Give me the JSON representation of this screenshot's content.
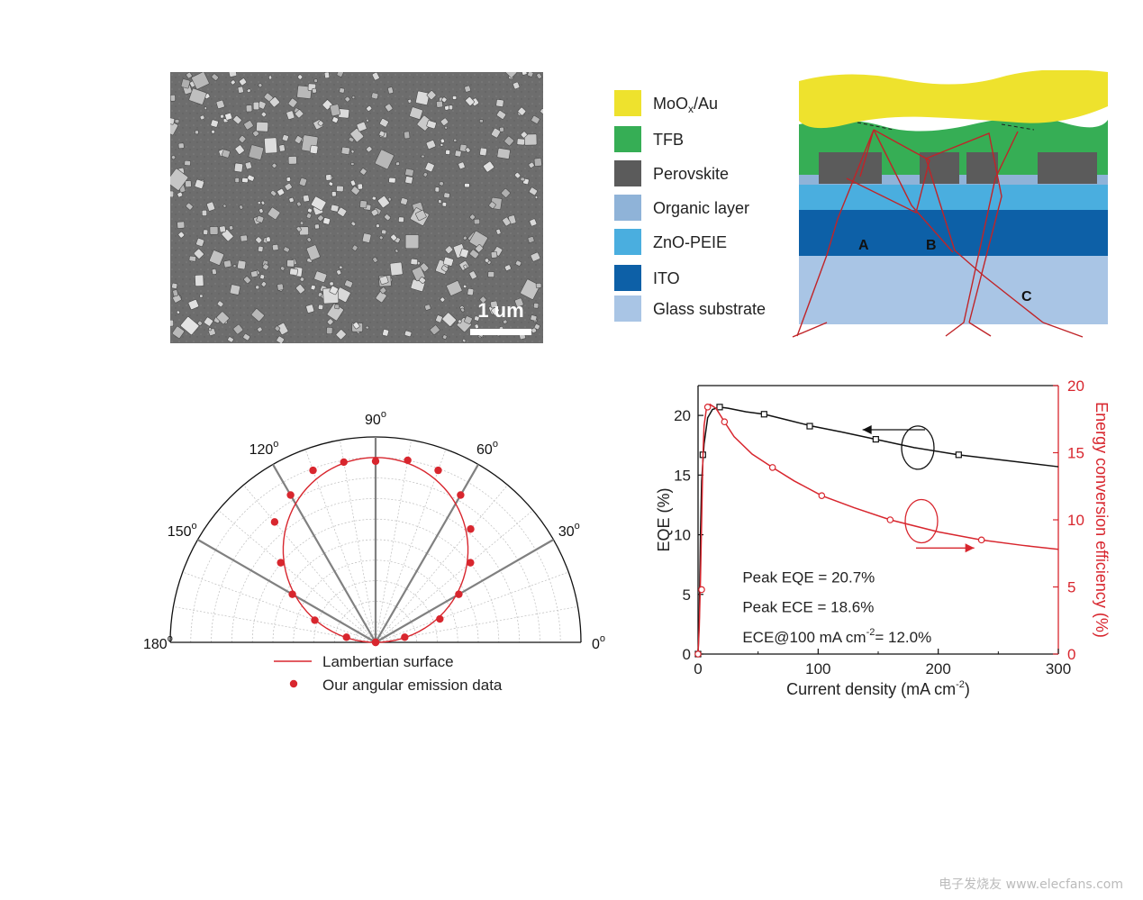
{
  "sem": {
    "scale_label": "1 um"
  },
  "stack": {
    "legend": [
      {
        "label": "MoO",
        "sub": "x",
        "tail": "/Au",
        "color": "#eee22d"
      },
      {
        "label": "TFB",
        "color": "#36ae55"
      },
      {
        "label": "Perovskite",
        "color": "#5b5b5b"
      },
      {
        "label": "Organic layer",
        "color": "#8fb3d8"
      },
      {
        "label": "ZnO-PEIE",
        "color": "#4aaedf"
      },
      {
        "label": "ITO",
        "color": "#0d60a7"
      },
      {
        "label": "Glass substrate",
        "color": "#a9c5e5"
      }
    ],
    "path_labels": [
      "A",
      "B",
      "C"
    ],
    "ray_color": "#c02428"
  },
  "chart_data": [
    {
      "type": "scatter",
      "subtype": "polar",
      "angle_ticks": [
        "0",
        "30",
        "60",
        "90",
        "120",
        "150",
        "180"
      ],
      "degree_symbol": "o",
      "series": [
        {
          "name": "Lambertian surface",
          "kind": "line",
          "color": "#d8262e",
          "model": "cosine"
        },
        {
          "name": "Our angular emission data",
          "kind": "points",
          "color": "#d8262e",
          "angles_deg": [
            0,
            10,
            20,
            30,
            40,
            50,
            60,
            70,
            80,
            90,
            100,
            110,
            120,
            130,
            140,
            150,
            160,
            170,
            180
          ],
          "r": [
            0.0,
            0.16,
            0.37,
            0.52,
            0.67,
            0.8,
            0.92,
            0.99,
            1.0,
            0.98,
            0.99,
            0.99,
            0.92,
            0.85,
            0.67,
            0.52,
            0.35,
            0.16,
            0.0
          ]
        }
      ],
      "rlim": [
        0,
        1
      ],
      "legend_position": "bottom"
    },
    {
      "type": "line",
      "xlabel": "Current density (mA cm",
      "xlabel_sup": "-2",
      "xlabel_tail": ")",
      "ylabel": "EQE (%)",
      "y2label": "Energy conversion efficiency (%)",
      "xlim": [
        0,
        300
      ],
      "ylim": [
        0,
        22.5
      ],
      "y2lim": [
        0,
        20
      ],
      "xticks": [
        0,
        100,
        200,
        300
      ],
      "yticks": [
        0,
        5,
        10,
        15,
        20
      ],
      "y2ticks": [
        0,
        5,
        10,
        15,
        20
      ],
      "series": [
        {
          "name": "EQE",
          "axis": "left",
          "color": "#111111",
          "marker": "square",
          "x": [
            0,
            1,
            2,
            3,
            5,
            8,
            12,
            18,
            25,
            40,
            55,
            75,
            95,
            120,
            148,
            180,
            217,
            250,
            300
          ],
          "y": [
            0,
            3.0,
            10.0,
            14.5,
            17.6,
            19.8,
            20.5,
            20.7,
            20.6,
            20.3,
            20.1,
            19.6,
            19.1,
            18.6,
            18.0,
            17.3,
            16.7,
            16.3,
            15.7
          ],
          "marker_x": [
            0,
            4,
            18,
            55,
            93,
            148,
            217
          ],
          "marker_y": [
            0,
            16.7,
            20.7,
            20.1,
            19.1,
            18.0,
            16.7
          ]
        },
        {
          "name": "ECE",
          "axis": "right",
          "color": "#d8262e",
          "marker": "circle",
          "x": [
            0,
            1,
            2,
            3,
            4,
            5,
            7,
            10,
            15,
            22,
            30,
            45,
            62,
            80,
            103,
            130,
            160,
            200,
            236,
            270,
            300
          ],
          "y": [
            0,
            2.0,
            5.5,
            10.0,
            14.5,
            17.0,
            18.3,
            18.6,
            18.3,
            17.3,
            16.2,
            14.9,
            13.9,
            12.9,
            11.8,
            10.9,
            10.0,
            9.1,
            8.5,
            8.1,
            7.8
          ],
          "marker_x": [
            0,
            3,
            8,
            22,
            62,
            103,
            160,
            236
          ],
          "marker_y": [
            0,
            4.8,
            18.4,
            17.3,
            13.9,
            11.8,
            10.0,
            8.5
          ]
        }
      ],
      "annotations": {
        "peak_eqe": "Peak EQE = 20.7%",
        "peak_ece": "Peak ECE = 18.6%",
        "ece_at_100_prefix": "ECE@100 mA cm",
        "ece_at_100_sup": "-2",
        "ece_at_100_suffix": "= 12.0%"
      }
    }
  ],
  "watermark": "电子发烧友 www.elecfans.com"
}
